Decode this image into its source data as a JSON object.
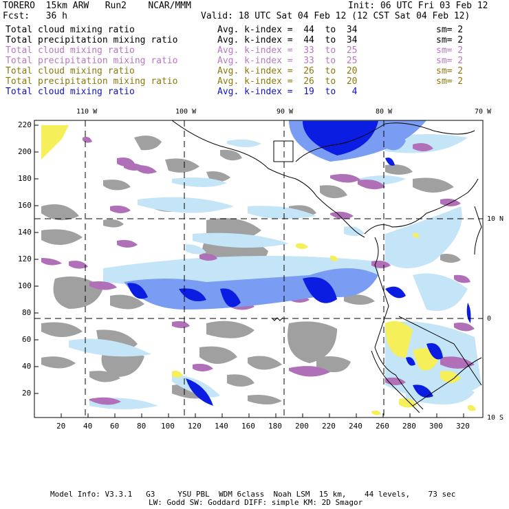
{
  "header": {
    "left1": "TORERO  15km ARW   Run2    NCAR/MMM",
    "left2": "Fcst:   36 h",
    "init": "Init: 06 UTC Fri 03 Feb 12",
    "valid": "Valid: 18 UTC Sat 04 Feb 12 (12 CST Sat 04 Feb 12)"
  },
  "legend": [
    {
      "field": "Total cloud mixing ratio",
      "range": "Avg. k-index =  44  to  34",
      "sm": "sm= 2",
      "color": "#000000"
    },
    {
      "field": "Total precipitation mixing ratio",
      "range": "Avg. k-index =  44  to  34",
      "sm": "sm= 2",
      "color": "#000000"
    },
    {
      "field": "Total cloud mixing ratio",
      "range": "Avg. k-index =  33  to  25",
      "sm": "sm= 2",
      "color": "#b877c0"
    },
    {
      "field": "Total precipitation mixing ratio",
      "range": "Avg. k-index =  33  to  25",
      "sm": "sm= 2",
      "color": "#b877c0"
    },
    {
      "field": "Total cloud mixing ratio",
      "range": "Avg. k-index =  26  to  20",
      "sm": "sm= 2",
      "color": "#8a7a0a"
    },
    {
      "field": "Total precipitation mixing ratio",
      "range": "Avg. k-index =  26  to  20",
      "sm": "sm= 2",
      "color": "#8a7a0a"
    },
    {
      "field": "Total cloud mixing ratio",
      "range": "Avg. k-index =  19  to   4",
      "sm": "",
      "color": "#1010d0"
    }
  ],
  "map": {
    "lon_labels": [
      "110 W",
      "100 W",
      "90 W",
      "80 W",
      "70 W"
    ],
    "lat_labels": [
      "10 N",
      "0",
      "10 S"
    ],
    "y_ticks": [
      "220",
      "200",
      "180",
      "160",
      "140",
      "120",
      "100",
      "80",
      "60",
      "40",
      "20"
    ],
    "x_ticks": [
      "20",
      "40",
      "60",
      "80",
      "100",
      "120",
      "140",
      "160",
      "180",
      "200",
      "220",
      "240",
      "260",
      "280",
      "300",
      "320"
    ],
    "colors": {
      "gray": "#a0a0a0",
      "purple": "#b070b8",
      "yellow": "#f5ef5a",
      "light_blue": "#c4e4f8",
      "mid_blue": "#7a9cf2",
      "deep_blue": "#0b1de0"
    }
  },
  "footer": {
    "line1": "Model Info: V3.3.1   G3     YSU PBL  WDM 6class  Noah LSM  15 km,    44 levels,    73 sec",
    "line2": "LW: Godd SW: Goddard DIFF: simple KM: 2D Smagor"
  }
}
